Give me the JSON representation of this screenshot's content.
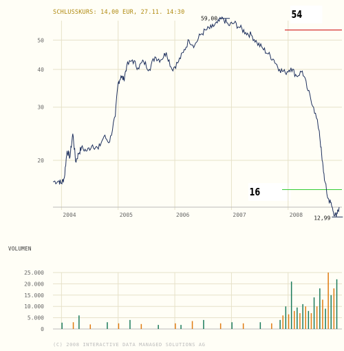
{
  "header": {
    "title": "SCHLUSSKURS: 14,00 EUR, 27.11. 14:30"
  },
  "volume": {
    "title": "VOLUMEN"
  },
  "footer": {
    "copyright": "(C) 2008 INTERACTIVE DATA MANAGED SOLUTIONS AG"
  },
  "markers": {
    "high": {
      "label": "54",
      "color": "#cc0000",
      "value": 54
    },
    "low": {
      "label": "16",
      "color": "#33cc33",
      "value": 16
    }
  },
  "chart_data": [
    {
      "type": "line",
      "title": "",
      "xlabel": "",
      "ylabel": "",
      "yscale": "log",
      "ylim": [
        14,
        58
      ],
      "xlim": [
        2003.85,
        2008.95
      ],
      "grid": true,
      "x_ticks": [
        "2004",
        "2005",
        "2006",
        "2007",
        "2008"
      ],
      "y_ticks": [
        "20",
        "30",
        "40",
        "50"
      ],
      "annotations": [
        {
          "text": "59,00",
          "x": 2006.85,
          "y": 59.0
        },
        {
          "text": "12,99",
          "x": 2008.82,
          "y": 12.99
        }
      ],
      "x": [
        2003.85,
        2003.95,
        2004.0,
        2004.05,
        2004.1,
        2004.15,
        2004.2,
        2004.25,
        2004.3,
        2004.35,
        2004.45,
        2004.55,
        2004.65,
        2004.75,
        2004.85,
        2004.95,
        2005.0,
        2005.05,
        2005.1,
        2005.15,
        2005.25,
        2005.35,
        2005.45,
        2005.55,
        2005.65,
        2005.75,
        2005.85,
        2005.95,
        2006.05,
        2006.15,
        2006.25,
        2006.35,
        2006.45,
        2006.55,
        2006.65,
        2006.75,
        2006.85,
        2006.95,
        2007.05,
        2007.15,
        2007.25,
        2007.35,
        2007.45,
        2007.55,
        2007.65,
        2007.75,
        2007.85,
        2007.95,
        2008.05,
        2008.15,
        2008.25,
        2008.35,
        2008.45,
        2008.55,
        2008.6,
        2008.65,
        2008.7,
        2008.75,
        2008.8,
        2008.85,
        2008.9
      ],
      "values": [
        17.0,
        17.1,
        16.8,
        17.5,
        21.5,
        20.5,
        24.5,
        19.8,
        21.0,
        22.0,
        21.5,
        22.5,
        21.8,
        24.0,
        23.0,
        28.0,
        36.0,
        38.0,
        37.0,
        41.0,
        43.0,
        40.5,
        42.5,
        40.0,
        44.0,
        43.0,
        45.5,
        40.0,
        42.0,
        45.5,
        50.0,
        48.0,
        52.0,
        54.0,
        55.0,
        57.0,
        59.0,
        56.0,
        57.0,
        55.0,
        53.0,
        52.0,
        49.0,
        47.0,
        45.0,
        43.0,
        40.0,
        39.0,
        40.5,
        38.0,
        39.5,
        34.0,
        30.0,
        25.0,
        20.0,
        17.0,
        15.0,
        14.5,
        13.5,
        13.0,
        14.0
      ]
    },
    {
      "type": "bar",
      "title": "VOLUMEN",
      "ylim": [
        0,
        25000
      ],
      "y_ticks": [
        "0",
        "5.000",
        "10.000",
        "15.000",
        "20.000",
        "25.000"
      ],
      "series_colors": [
        "#1a7a5a",
        "#e07a10"
      ],
      "x": [
        2004.0,
        2004.2,
        2004.3,
        2004.5,
        2004.8,
        2005.0,
        2005.2,
        2005.4,
        2005.7,
        2006.0,
        2006.1,
        2006.3,
        2006.5,
        2006.8,
        2007.0,
        2007.2,
        2007.5,
        2007.7,
        2007.85,
        2007.9,
        2007.95,
        2008.0,
        2008.05,
        2008.1,
        2008.15,
        2008.2,
        2008.25,
        2008.3,
        2008.35,
        2008.4,
        2008.45,
        2008.5,
        2008.55,
        2008.6,
        2008.65,
        2008.7,
        2008.75,
        2008.8,
        2008.85
      ],
      "values": [
        2800,
        3000,
        6000,
        2000,
        3000,
        2500,
        4000,
        2200,
        1800,
        2500,
        1800,
        3500,
        4000,
        2500,
        3000,
        2500,
        3000,
        2500,
        4000,
        6000,
        10000,
        6500,
        21000,
        8000,
        9500,
        7000,
        11000,
        10000,
        8000,
        7000,
        14000,
        10000,
        18000,
        13000,
        9000,
        25000,
        15000,
        18000,
        22000
      ]
    }
  ]
}
